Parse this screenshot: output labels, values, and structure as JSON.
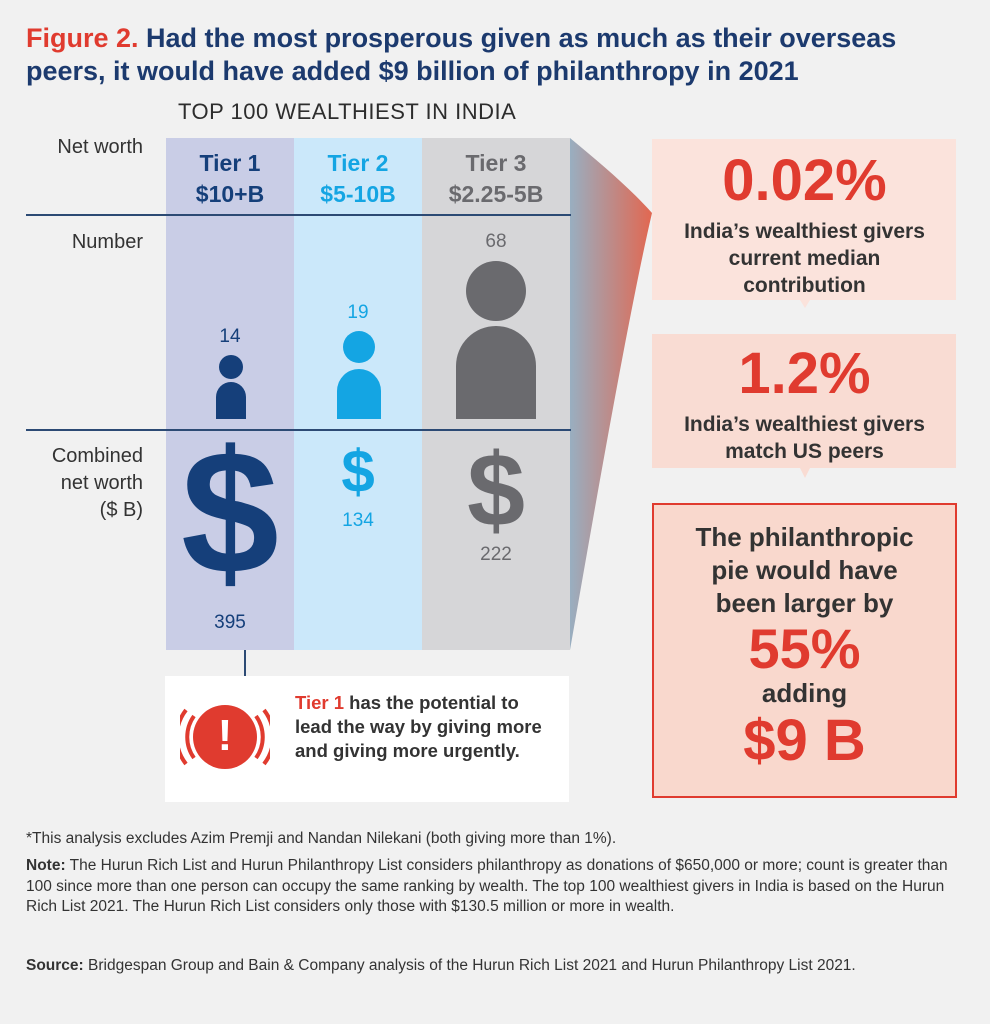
{
  "title": {
    "figure_label": "Figure 2.",
    "text": "Had the most prosperous given as much as their overseas peers, it would have added $9 billion of philanthropy in 2021"
  },
  "subhead": "TOP 100 WEALTHIEST IN INDIA",
  "row_labels": {
    "net_worth": "Net worth",
    "number": "Number",
    "combined_1": "Combined",
    "combined_2": "net worth",
    "combined_3": "($ B)"
  },
  "tiers": [
    {
      "name": "Tier 1",
      "range": "$10+B",
      "count": "14",
      "combined": "395",
      "color": "#153f7a",
      "bg": "#c9cde6"
    },
    {
      "name": "Tier 2",
      "range": "$5-10B",
      "count": "19",
      "combined": "134",
      "color": "#14a5e3",
      "bg": "#cbe8fa"
    },
    {
      "name": "Tier 3",
      "range": "$2.25-5B",
      "count": "68",
      "combined": "222",
      "color": "#6a6a6e",
      "bg": "#d6d6d8"
    }
  ],
  "dollar_glyph": "$",
  "callout": {
    "icon_glyph": "!",
    "highlight": "Tier 1",
    "text": " has the potential to lead the way by giving more and giving more urgently."
  },
  "boxes": {
    "current": {
      "value": "0.02%",
      "text": "India’s wealthiest givers current median contribution"
    },
    "match": {
      "value": "1.2%",
      "text": "India’s wealthiest givers match US peers"
    },
    "pie": {
      "text_1": "The philanthropic pie would have been larger by",
      "value_1": "55%",
      "text_2": "adding",
      "value_2": "$9 B"
    }
  },
  "footer": {
    "asterisk": "*This analysis excludes Azim Premji and Nandan Nilekani (both giving more than 1%).",
    "note_label": "Note:",
    "note": " The Hurun Rich List and Hurun Philanthropy List considers philanthropy as donations of $650,000 or more; count is greater than 100 since more than one person can occupy the same ranking by wealth. The top 100 wealthiest givers in India is based on the Hurun Rich List 2021. The Hurun Rich List considers only those with $130.5 million or more in wealth.",
    "source_label": "Source:",
    "source": " Bridgespan Group and Bain & Company analysis of the Hurun Rich List 2021 and Hurun Philanthropy List 2021."
  },
  "colors": {
    "accent_red": "#e03b2f",
    "navy": "#1c3a6e",
    "box_fill": "#f9dcd3",
    "box_fill_light": "#fbe3dc"
  }
}
